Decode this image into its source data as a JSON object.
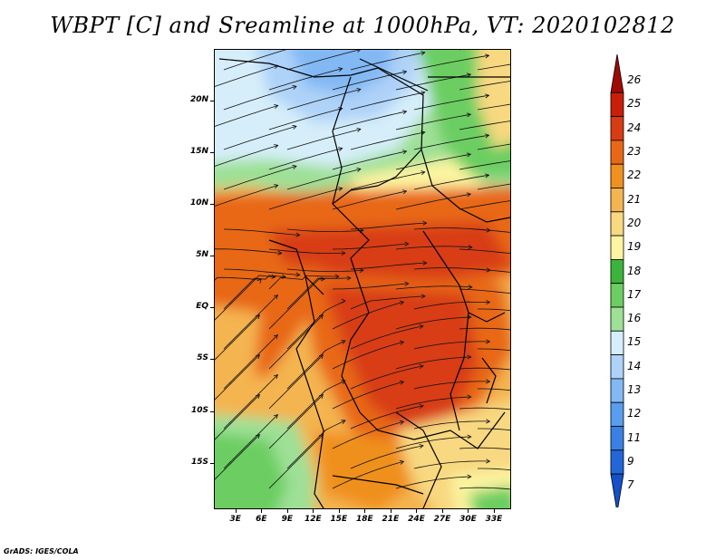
{
  "title": "WBPT [C] and Sreamline at 1000hPa, VT: 2020102812",
  "footer": "GrADS: IGES/COLA",
  "lat_labels": [
    "20N",
    "15N",
    "10N",
    "5N",
    "EQ",
    "5S",
    "10S",
    "15S"
  ],
  "lat_values": [
    20,
    15,
    10,
    5,
    0,
    -5,
    -10,
    -15
  ],
  "lon_labels": [
    "3E",
    "6E",
    "9E",
    "12E",
    "15E",
    "18E",
    "21E",
    "24E",
    "27E",
    "30E",
    "33E"
  ],
  "lon_values": [
    3,
    6,
    9,
    12,
    15,
    18,
    21,
    24,
    27,
    30,
    33
  ],
  "lat_range": [
    -19.5,
    25
  ],
  "lon_range": [
    0.5,
    35
  ],
  "colorbar": {
    "labels": [
      "7",
      "9",
      "11",
      "12",
      "13",
      "14",
      "15",
      "16",
      "17",
      "18",
      "19",
      "20",
      "21",
      "22",
      "23",
      "24",
      "25",
      "26"
    ],
    "colors": [
      "#1450c8",
      "#2266d8",
      "#3a80e4",
      "#5a9cee",
      "#82b8f4",
      "#aed2f8",
      "#d6eefa",
      "#9ee096",
      "#6cce62",
      "#3cb43c",
      "#fcf4a0",
      "#f8d880",
      "#f4b450",
      "#f0901e",
      "#e86818",
      "#d83c14",
      "#c81e0a",
      "#a00a04"
    ]
  },
  "colors": {
    "title": "#000000",
    "streamline": "#111111",
    "border": "#000000"
  }
}
